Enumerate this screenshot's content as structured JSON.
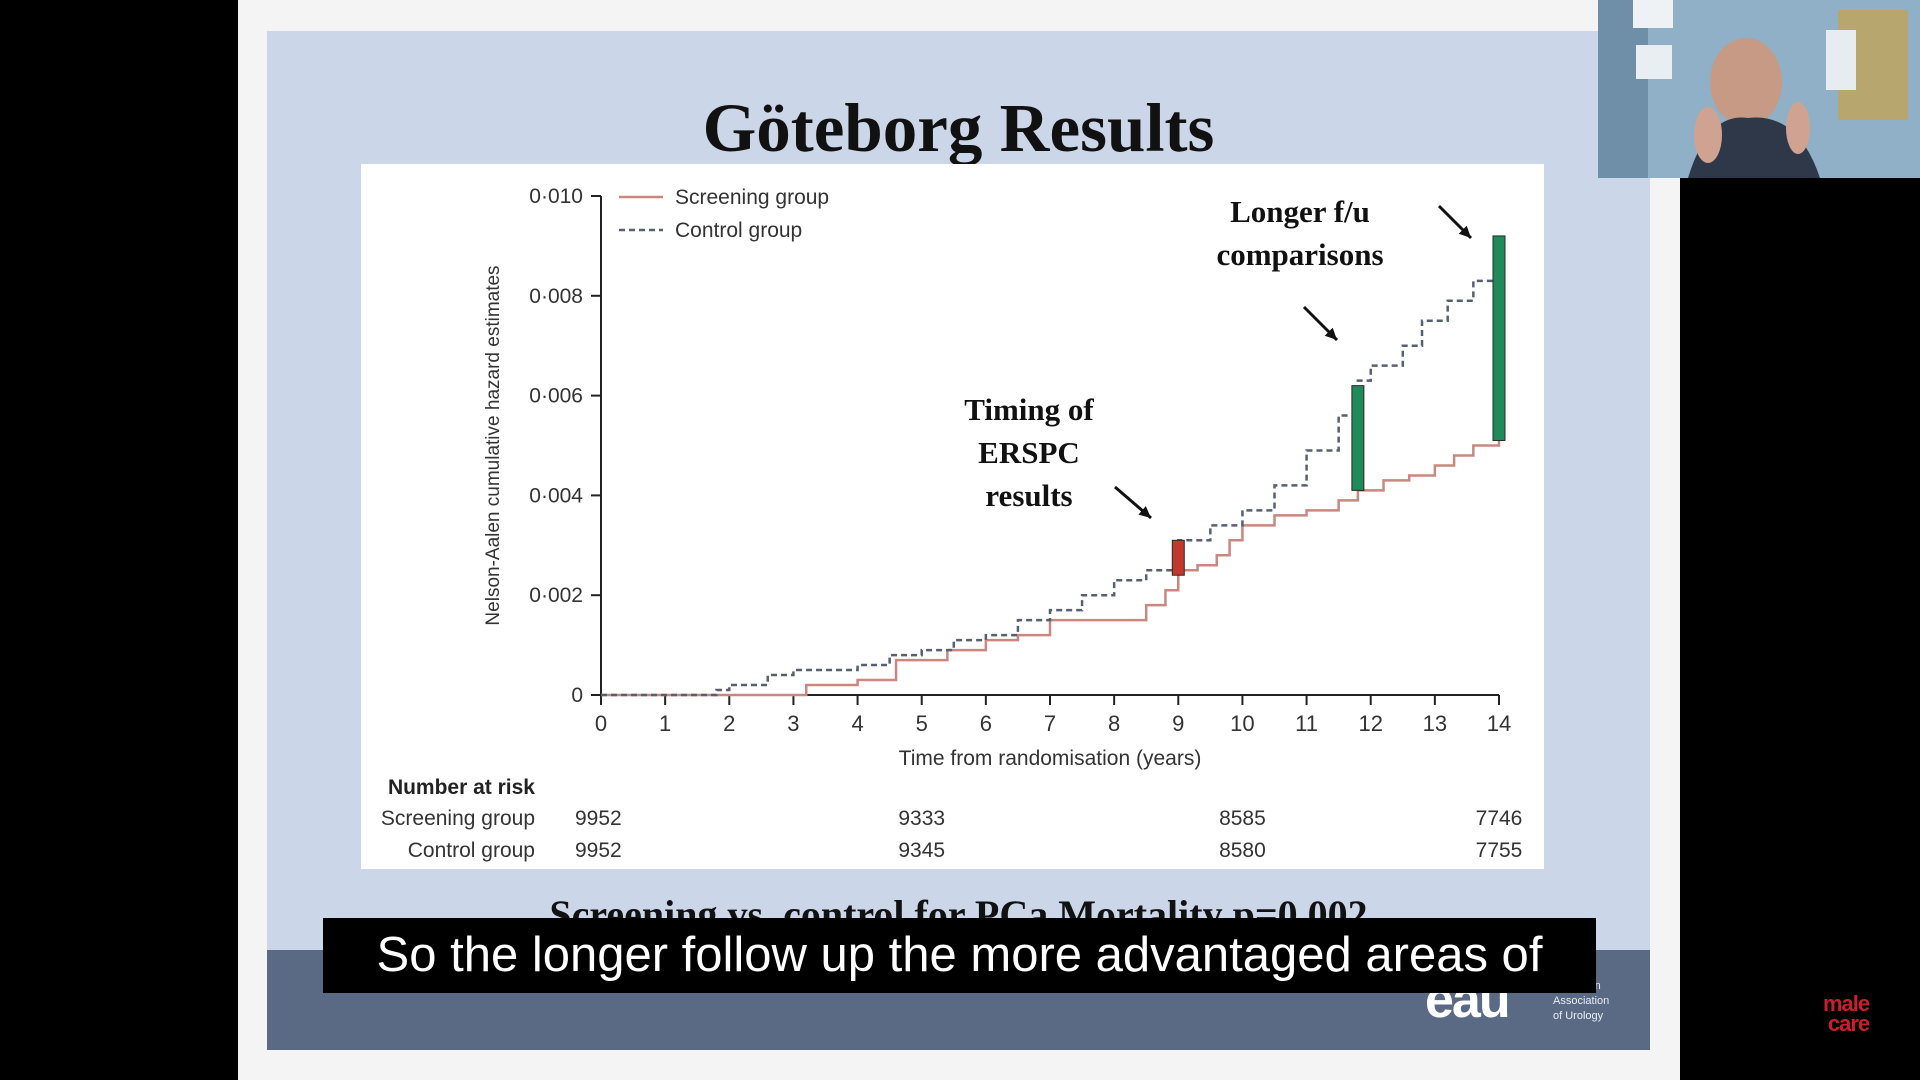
{
  "slide": {
    "title": "Göteborg Results",
    "subtitle_partial": "Screening vs. control for PCa Mortality p=0.002"
  },
  "chart_data": {
    "type": "line",
    "title": "Göteborg Results",
    "xlabel": "Time from randomisation (years)",
    "ylabel": "Nelson-Aalen cumulative hazard estimates",
    "xlim": [
      0,
      14
    ],
    "ylim": [
      0,
      0.01
    ],
    "x_ticks": [
      "0",
      "1",
      "2",
      "3",
      "4",
      "5",
      "6",
      "7",
      "8",
      "9",
      "10",
      "11",
      "12",
      "13",
      "14"
    ],
    "y_ticks": [
      "0",
      "0·002",
      "0·004",
      "0·006",
      "0·008",
      "0·010"
    ],
    "legend": {
      "position": "top-left",
      "entries": [
        "Screening group",
        "Control group"
      ]
    },
    "series": [
      {
        "name": "Screening group",
        "style": "solid",
        "color": "#c9877f",
        "points": [
          [
            0,
            0
          ],
          [
            2,
            0
          ],
          [
            3,
            0
          ],
          [
            3.2,
            0.0002
          ],
          [
            4,
            0.0003
          ],
          [
            4.6,
            0.0007
          ],
          [
            5.4,
            0.0009
          ],
          [
            6,
            0.0011
          ],
          [
            6.5,
            0.0012
          ],
          [
            7,
            0.0015
          ],
          [
            7.5,
            0.0015
          ],
          [
            8,
            0.0015
          ],
          [
            8.5,
            0.0018
          ],
          [
            8.8,
            0.0021
          ],
          [
            9,
            0.0025
          ],
          [
            9.3,
            0.0026
          ],
          [
            9.6,
            0.0028
          ],
          [
            9.8,
            0.0031
          ],
          [
            10,
            0.0034
          ],
          [
            10.5,
            0.0036
          ],
          [
            11,
            0.0037
          ],
          [
            11.5,
            0.0039
          ],
          [
            11.8,
            0.0041
          ],
          [
            12.2,
            0.0043
          ],
          [
            12.6,
            0.0044
          ],
          [
            13,
            0.0046
          ],
          [
            13.3,
            0.0048
          ],
          [
            13.6,
            0.005
          ],
          [
            14,
            0.0051
          ]
        ]
      },
      {
        "name": "Control group",
        "style": "dashed",
        "color": "#556070",
        "points": [
          [
            0,
            0
          ],
          [
            1.5,
            0
          ],
          [
            1.8,
            0.0001
          ],
          [
            2,
            0.0002
          ],
          [
            2.6,
            0.0004
          ],
          [
            3,
            0.0005
          ],
          [
            3.5,
            0.0005
          ],
          [
            4,
            0.0006
          ],
          [
            4.5,
            0.0008
          ],
          [
            5,
            0.0009
          ],
          [
            5.5,
            0.0011
          ],
          [
            6,
            0.0012
          ],
          [
            6.5,
            0.0015
          ],
          [
            7,
            0.0017
          ],
          [
            7.5,
            0.002
          ],
          [
            8,
            0.0023
          ],
          [
            8.5,
            0.0025
          ],
          [
            9,
            0.0031
          ],
          [
            9.5,
            0.0034
          ],
          [
            10,
            0.0037
          ],
          [
            10.5,
            0.0042
          ],
          [
            11,
            0.0049
          ],
          [
            11.5,
            0.0056
          ],
          [
            11.8,
            0.0063
          ],
          [
            12,
            0.0066
          ],
          [
            12.5,
            0.007
          ],
          [
            12.8,
            0.0075
          ],
          [
            13.2,
            0.0079
          ],
          [
            13.6,
            0.0083
          ],
          [
            14,
            0.009
          ]
        ]
      }
    ],
    "highlights": [
      {
        "x": 9,
        "y_low": 0.0024,
        "y_high": 0.0031,
        "color": "#c0392b"
      },
      {
        "x": 11.8,
        "y_low": 0.0041,
        "y_high": 0.0062,
        "color": "#1f8a5a"
      },
      {
        "x": 14,
        "y_low": 0.0051,
        "y_high": 0.0092,
        "color": "#1f8a5a"
      }
    ],
    "annotations": [
      {
        "text": [
          "Timing of",
          "ERSPC",
          "results"
        ]
      },
      {
        "text": [
          "Longer f/u",
          "comparisons"
        ]
      }
    ],
    "risk_table": {
      "heading": "Number at risk",
      "x": [
        0,
        5,
        10,
        14
      ],
      "rows": [
        {
          "label": "Screening group",
          "values": [
            "9952",
            "9333",
            "8585",
            "7746"
          ]
        },
        {
          "label": "Control group",
          "values": [
            "9952",
            "9345",
            "8580",
            "7755"
          ]
        }
      ]
    }
  },
  "caption": {
    "text": "So the longer follow up the more advantaged areas of"
  },
  "logo": {
    "mark": "eau",
    "text_lines": [
      "European",
      "Association",
      "of Urology"
    ]
  },
  "brand": {
    "line1": "male",
    "line2": "care"
  },
  "colors": {
    "slide_bg": "#cbd7e8",
    "footer": "#5a6a85",
    "highlight_red": "#c0392b",
    "highlight_green": "#1f8a5a"
  }
}
